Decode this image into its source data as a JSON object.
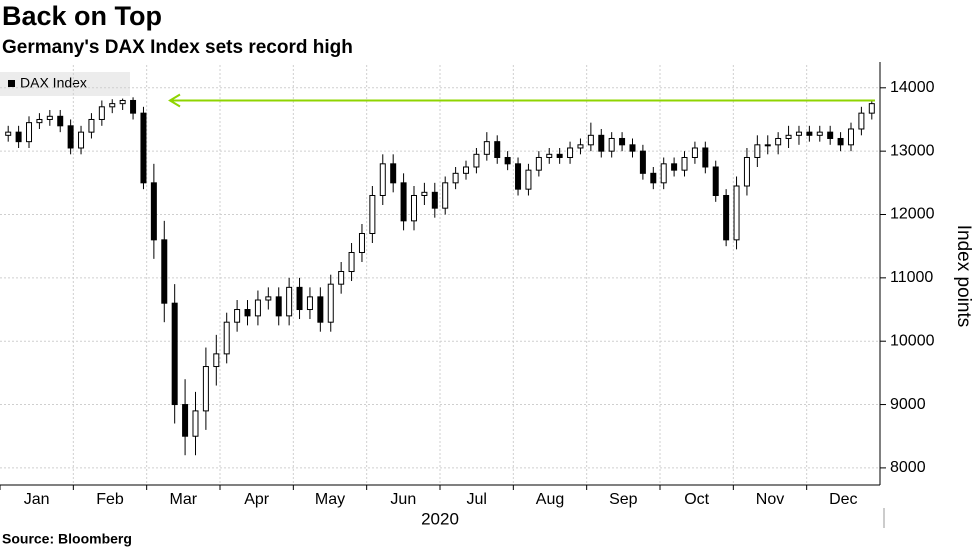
{
  "chart_data": {
    "type": "candlestick",
    "title": "Back on Top",
    "subtitle": "Germany's DAX Index sets record high",
    "legend": "DAX Index",
    "y_label": "Index points",
    "year_label": "2020",
    "source": "Source: Bloomberg",
    "categories": [
      "Jan",
      "Feb",
      "Mar",
      "Apr",
      "May",
      "Jun",
      "Jul",
      "Aug",
      "Sep",
      "Oct",
      "Nov",
      "Dec"
    ],
    "open": [
      13250,
      13300,
      13150,
      13450,
      13500,
      13550,
      13400,
      13050,
      13300,
      13500,
      13700,
      13750,
      13800,
      13600,
      12500,
      11600,
      10600,
      9000,
      8500,
      8900,
      9600,
      9800,
      10300,
      10500,
      10400,
      10650,
      10700,
      10400,
      10850,
      10500,
      10700,
      10300,
      10900,
      11100,
      11400,
      11700,
      12300,
      12800,
      12500,
      11900,
      12300,
      12350,
      12100,
      12500,
      12650,
      12750,
      12950,
      13150,
      12900,
      12800,
      12400,
      12700,
      12900,
      12950,
      12900,
      13050,
      13100,
      13250,
      13000,
      13200,
      13100,
      13000,
      12650,
      12500,
      12800,
      12700,
      12900,
      13050,
      12750,
      12300,
      11600,
      12450,
      12900,
      13100,
      13100,
      13200,
      13250,
      13300,
      13250,
      13300,
      13200,
      13100,
      13350,
      13600
    ],
    "high": [
      13400,
      13400,
      13550,
      13600,
      13650,
      13650,
      13500,
      13400,
      13600,
      13800,
      13820,
      13830,
      13850,
      13700,
      12800,
      11900,
      10900,
      9400,
      9200,
      9900,
      10100,
      10450,
      10650,
      10650,
      10800,
      10850,
      10850,
      11000,
      11000,
      10850,
      10850,
      11050,
      11250,
      11550,
      11850,
      12450,
      12950,
      12950,
      12650,
      12450,
      12500,
      12500,
      12600,
      12750,
      12850,
      13050,
      13300,
      13250,
      13000,
      12900,
      12800,
      13000,
      13050,
      13050,
      13150,
      13200,
      13450,
      13350,
      13300,
      13300,
      13200,
      13100,
      12750,
      12900,
      12900,
      13000,
      13150,
      13150,
      12850,
      12400,
      12600,
      13050,
      13250,
      13250,
      13300,
      13400,
      13400,
      13400,
      13400,
      13400,
      13300,
      13450,
      13700,
      13800
    ],
    "low": [
      13150,
      13050,
      13050,
      13350,
      13400,
      13300,
      12950,
      12950,
      13200,
      13400,
      13600,
      13650,
      13500,
      12400,
      11300,
      10300,
      8700,
      8200,
      8200,
      8600,
      9300,
      9650,
      10150,
      10250,
      10250,
      10500,
      10250,
      10250,
      10350,
      10350,
      10150,
      10150,
      10750,
      10950,
      11250,
      11550,
      12150,
      12350,
      11750,
      11750,
      12150,
      11950,
      12000,
      12400,
      12550,
      12650,
      12850,
      12800,
      12700,
      12300,
      12300,
      12600,
      12800,
      12800,
      12800,
      12950,
      13000,
      12900,
      12900,
      13000,
      12900,
      12550,
      12400,
      12400,
      12600,
      12600,
      12800,
      12650,
      12200,
      11500,
      11450,
      12300,
      12750,
      12950,
      12950,
      13050,
      13100,
      13150,
      13150,
      13100,
      13000,
      13000,
      13250,
      13500
    ],
    "close": [
      13300,
      13150,
      13450,
      13500,
      13550,
      13400,
      13050,
      13300,
      13500,
      13700,
      13750,
      13800,
      13600,
      12500,
      11600,
      10600,
      9000,
      8500,
      8900,
      9600,
      9800,
      10300,
      10500,
      10400,
      10650,
      10700,
      10400,
      10850,
      10500,
      10700,
      10300,
      10900,
      11100,
      11400,
      11700,
      12300,
      12800,
      12500,
      11900,
      12300,
      12350,
      12100,
      12500,
      12650,
      12750,
      12950,
      13150,
      12900,
      12800,
      12400,
      12700,
      12900,
      12950,
      12900,
      13050,
      13100,
      13250,
      13000,
      13200,
      13100,
      13000,
      12650,
      12500,
      12800,
      12700,
      12900,
      13050,
      12750,
      12300,
      11600,
      12450,
      12900,
      13100,
      13100,
      13200,
      13250,
      13300,
      13250,
      13300,
      13200,
      13100,
      13350,
      13600,
      13750
    ],
    "reference_line": {
      "value": 13800,
      "color": "#8fd400"
    },
    "up_color": "#ffffff",
    "down_color": "#000000",
    "ylim": [
      7730,
      14360
    ],
    "yticks": [
      8000,
      9000,
      10000,
      11000,
      12000,
      13000,
      14000
    ],
    "grid": true
  }
}
